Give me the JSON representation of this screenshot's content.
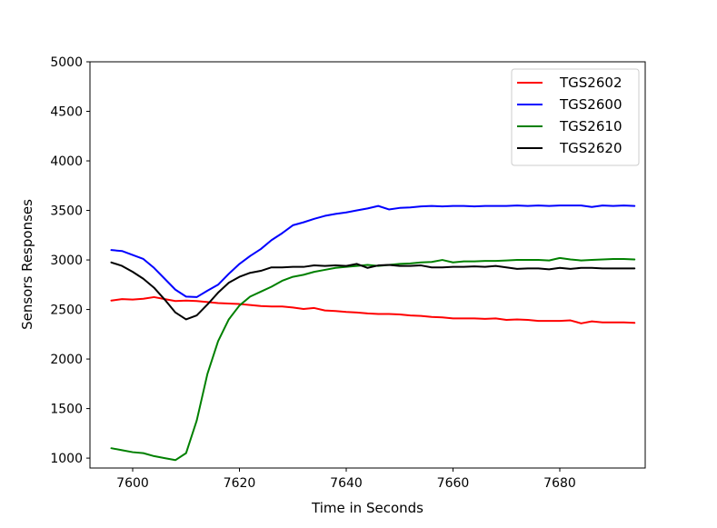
{
  "chart_data": {
    "type": "line",
    "title": "",
    "xlabel": "Time in Seconds",
    "ylabel": "Sensors Responses",
    "xlim": [
      7592,
      7696
    ],
    "ylim": [
      900,
      5000
    ],
    "xticks": [
      7600,
      7620,
      7640,
      7660,
      7680
    ],
    "yticks": [
      1000,
      1500,
      2000,
      2500,
      3000,
      3500,
      4000,
      4500,
      5000
    ],
    "grid": false,
    "legend_position": "top-right",
    "x": [
      7596,
      7598,
      7600,
      7602,
      7604,
      7606,
      7608,
      7610,
      7612,
      7614,
      7616,
      7618,
      7620,
      7622,
      7624,
      7626,
      7628,
      7630,
      7632,
      7634,
      7636,
      7638,
      7640,
      7642,
      7644,
      7646,
      7648,
      7650,
      7652,
      7654,
      7656,
      7658,
      7660,
      7662,
      7664,
      7666,
      7668,
      7670,
      7672,
      7674,
      7676,
      7678,
      7680,
      7682,
      7684,
      7686,
      7688,
      7690,
      7692,
      7694
    ],
    "series": [
      {
        "name": "TGS2602",
        "color": "#ff0000",
        "values": [
          2590,
          2605,
          2600,
          2608,
          2625,
          2605,
          2585,
          2590,
          2585,
          2575,
          2565,
          2560,
          2555,
          2545,
          2535,
          2530,
          2530,
          2520,
          2505,
          2515,
          2490,
          2485,
          2475,
          2470,
          2460,
          2455,
          2455,
          2450,
          2440,
          2435,
          2425,
          2420,
          2410,
          2410,
          2410,
          2405,
          2410,
          2395,
          2400,
          2395,
          2385,
          2385,
          2385,
          2390,
          2360,
          2380,
          2370,
          2370,
          2370,
          2365
        ]
      },
      {
        "name": "TGS2600",
        "color": "#0000ff",
        "values": [
          3100,
          3090,
          3050,
          3010,
          2920,
          2810,
          2700,
          2630,
          2625,
          2690,
          2750,
          2860,
          2960,
          3040,
          3110,
          3200,
          3270,
          3350,
          3380,
          3415,
          3445,
          3465,
          3480,
          3500,
          3520,
          3545,
          3510,
          3525,
          3530,
          3540,
          3545,
          3540,
          3545,
          3545,
          3540,
          3545,
          3545,
          3545,
          3550,
          3545,
          3550,
          3545,
          3550,
          3550,
          3550,
          3535,
          3550,
          3545,
          3550,
          3545
        ]
      },
      {
        "name": "TGS2610",
        "color": "#008000",
        "values": [
          1100,
          1080,
          1060,
          1050,
          1020,
          1000,
          980,
          1050,
          1380,
          1850,
          2180,
          2400,
          2540,
          2630,
          2680,
          2730,
          2790,
          2830,
          2850,
          2880,
          2900,
          2920,
          2930,
          2940,
          2950,
          2940,
          2950,
          2960,
          2965,
          2975,
          2980,
          3000,
          2975,
          2985,
          2985,
          2990,
          2990,
          2995,
          3000,
          3000,
          3000,
          2995,
          3020,
          3005,
          2995,
          3000,
          3005,
          3010,
          3010,
          3005
        ]
      },
      {
        "name": "TGS2620",
        "color": "#000000",
        "values": [
          2975,
          2940,
          2880,
          2810,
          2720,
          2600,
          2470,
          2400,
          2440,
          2550,
          2670,
          2770,
          2830,
          2870,
          2890,
          2925,
          2925,
          2930,
          2930,
          2945,
          2940,
          2945,
          2940,
          2960,
          2920,
          2945,
          2950,
          2940,
          2940,
          2945,
          2925,
          2925,
          2930,
          2930,
          2935,
          2930,
          2940,
          2925,
          2910,
          2915,
          2915,
          2905,
          2920,
          2910,
          2920,
          2920,
          2915,
          2915,
          2915,
          2915
        ]
      }
    ]
  }
}
